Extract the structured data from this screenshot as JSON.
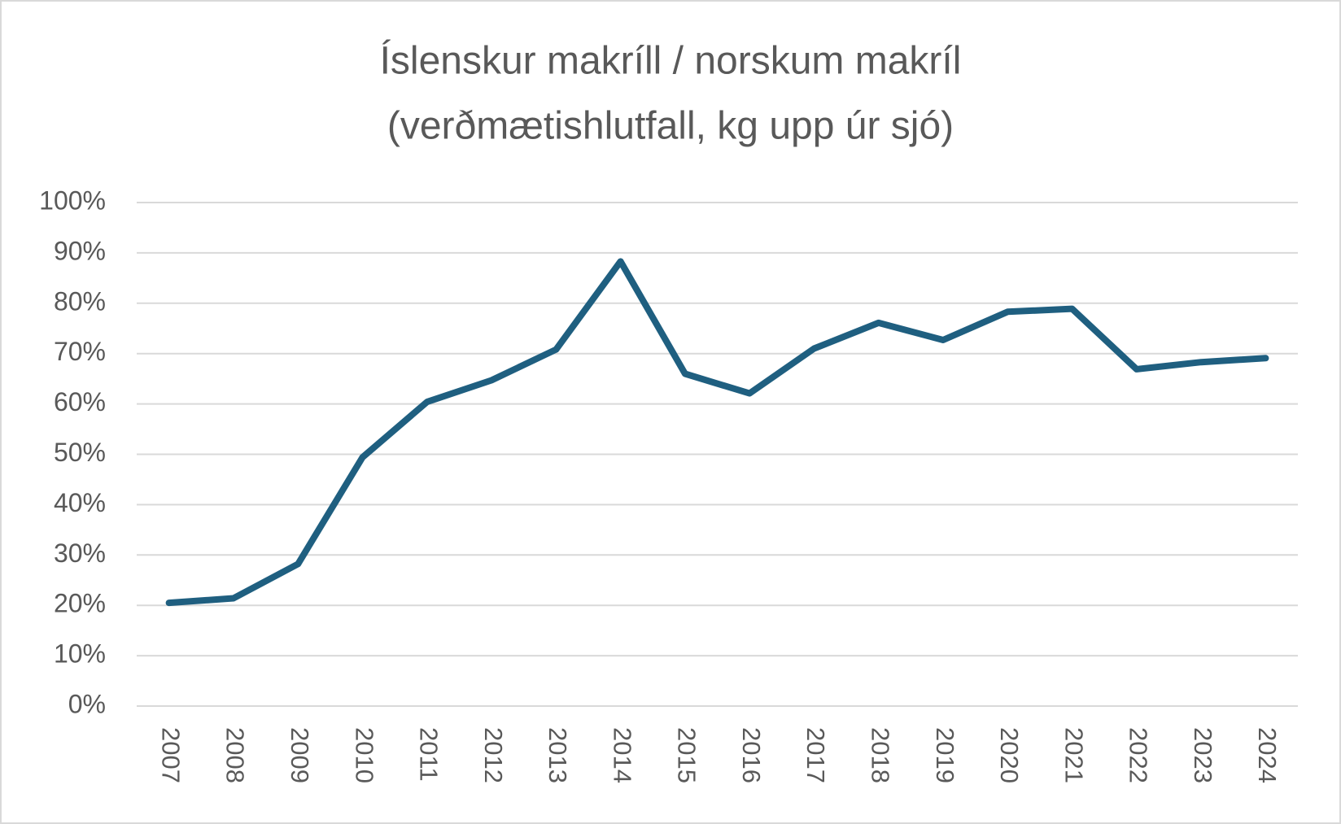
{
  "chart_data": {
    "type": "line",
    "title": "Íslenskur makríll / norskum makríl",
    "subtitle": "(verðmætishlutfall, kg upp úr sjó)",
    "categories": [
      "2007",
      "2008",
      "2009",
      "2010",
      "2011",
      "2012",
      "2013",
      "2014",
      "2015",
      "2016",
      "2017",
      "2018",
      "2019",
      "2020",
      "2021",
      "2022",
      "2023",
      "2024"
    ],
    "series": [
      {
        "name": "Íslenskur makríll / norskum makríl",
        "color": "#1f5f80",
        "values": [
          20.5,
          21.4,
          28.2,
          49.4,
          60.4,
          64.7,
          70.8,
          88.3,
          66.0,
          62.1,
          71.0,
          76.1,
          72.7,
          78.3,
          78.9,
          66.9,
          68.3,
          69.1
        ]
      }
    ],
    "ylim": [
      0,
      100
    ],
    "yticks": [
      {
        "value": 0,
        "label": "0%"
      },
      {
        "value": 10,
        "label": "10%"
      },
      {
        "value": 20,
        "label": "20%"
      },
      {
        "value": 30,
        "label": "30%"
      },
      {
        "value": 40,
        "label": "40%"
      },
      {
        "value": 50,
        "label": "50%"
      },
      {
        "value": 60,
        "label": "60%"
      },
      {
        "value": 70,
        "label": "70%"
      },
      {
        "value": 80,
        "label": "80%"
      },
      {
        "value": 90,
        "label": "90%"
      },
      {
        "value": 100,
        "label": "100%"
      }
    ],
    "grid": true
  }
}
